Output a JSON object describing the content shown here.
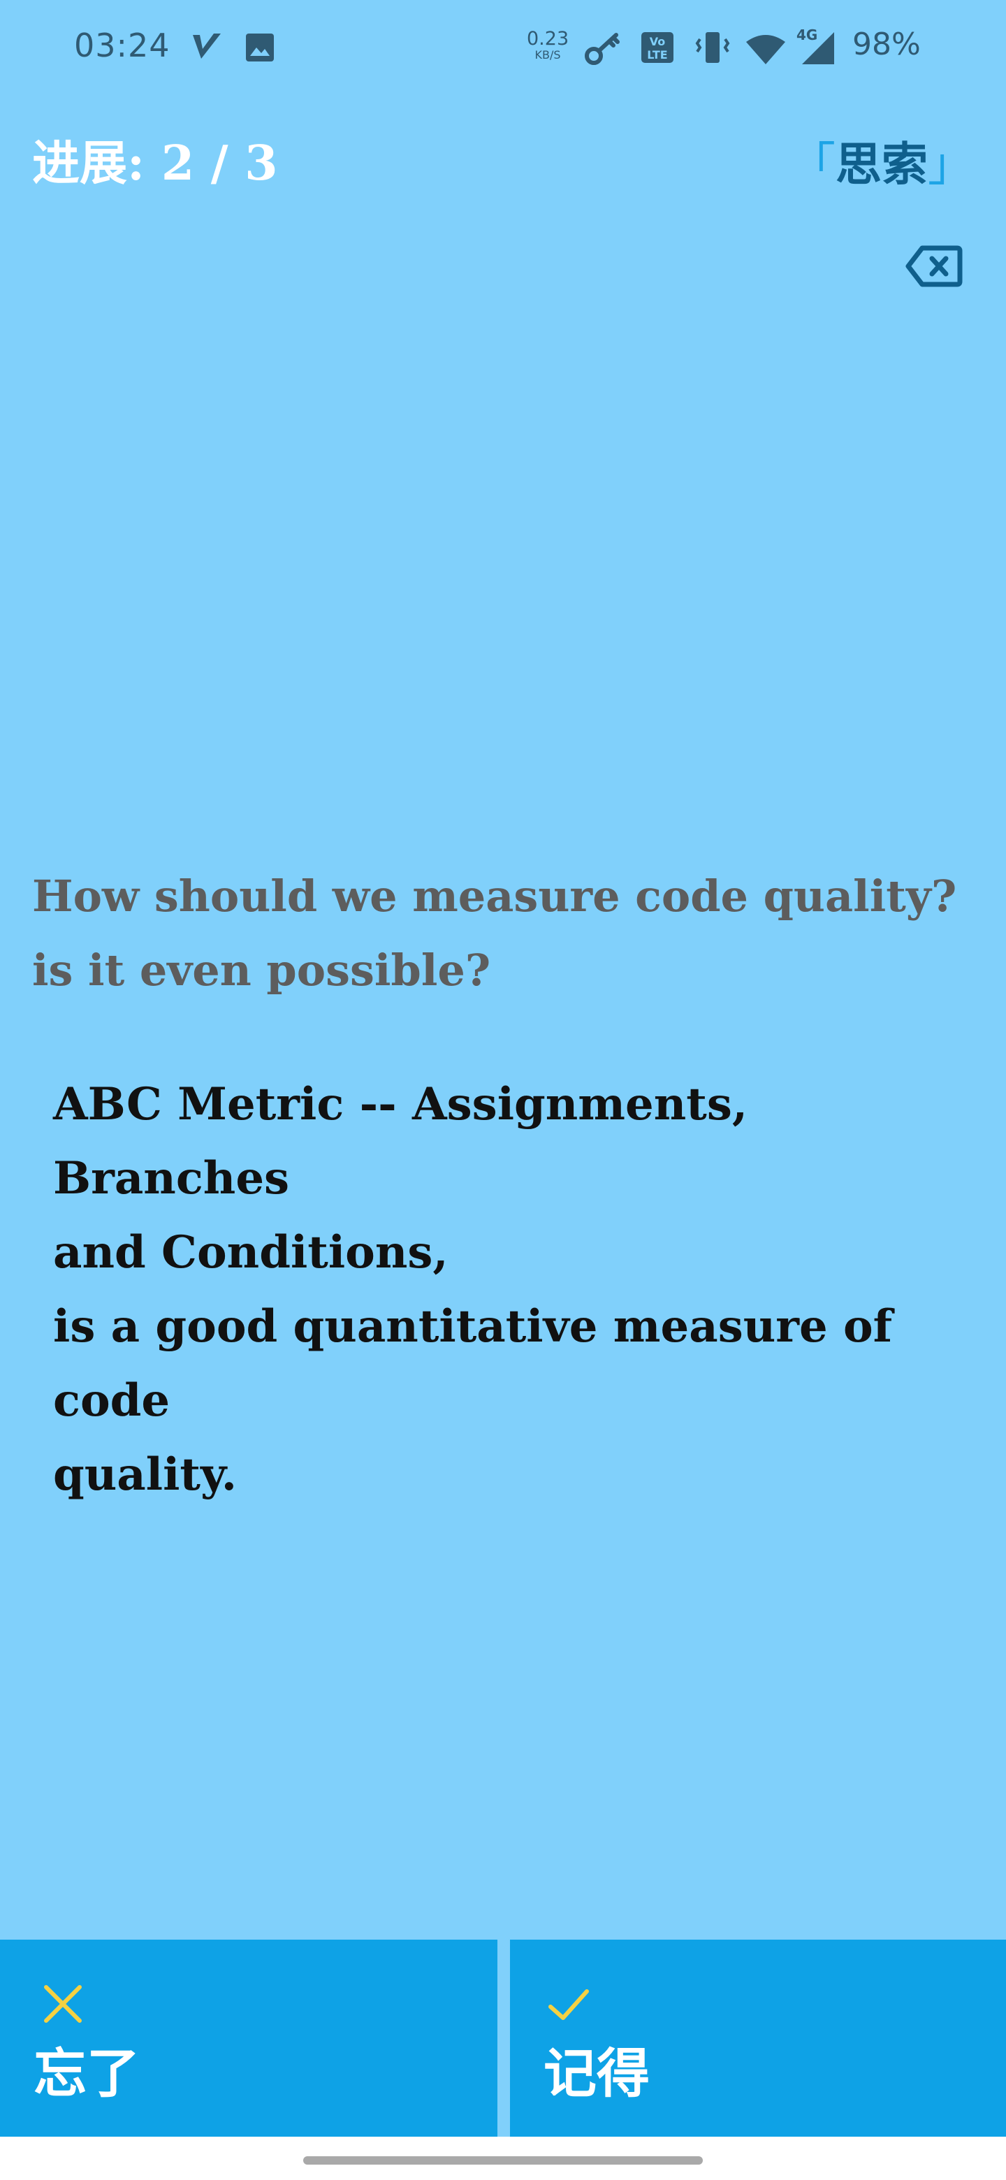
{
  "status_bar": {
    "time": "03:24",
    "net_speed_value": "0.23",
    "net_speed_unit": "KB/S",
    "network_type": "4G",
    "battery": "98%",
    "icons": [
      "vpn-v-icon",
      "gallery-icon",
      "key-icon",
      "volte-icon",
      "vibrate-icon",
      "wifi-icon",
      "cell-signal-icon"
    ]
  },
  "header": {
    "progress_label": "进展",
    "progress_sep": ":",
    "progress_value": "2 / 3",
    "mode_open": "「",
    "mode_label": "思索",
    "mode_close": "」"
  },
  "card": {
    "question_line1": "How should we measure code quality?",
    "question_line2": "is it even possible?",
    "answer_line1": "ABC Metric -- Assignments, Branches",
    "answer_line2": "and Conditions,",
    "answer_line3": "is a good quantitative measure of code",
    "answer_line4": "quality."
  },
  "actions": {
    "forget_label": "忘了",
    "remember_label": "记得"
  },
  "colors": {
    "background": "#80d0fb",
    "button": "#0ea2e6",
    "mark_yellow": "#f5d142",
    "mode_text": "#0f5f8c",
    "mode_bracket": "#1da4e6"
  }
}
